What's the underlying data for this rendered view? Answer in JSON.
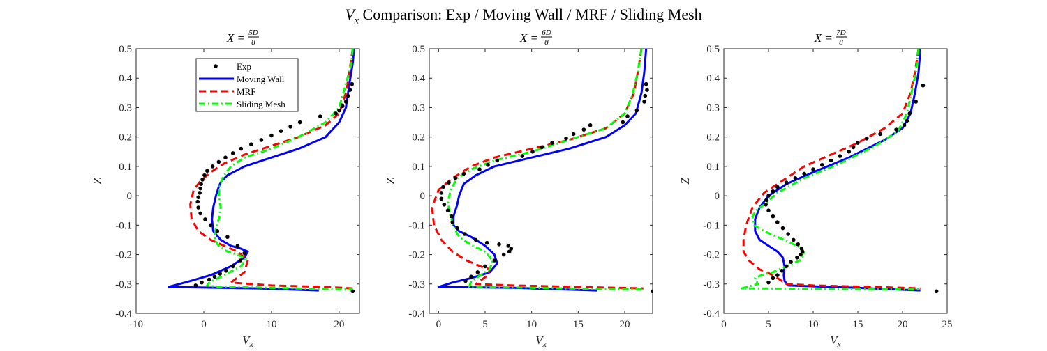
{
  "figure": {
    "title_symbol": "V",
    "title_subscript": "x",
    "title_rest": "Comparison: Exp / Moving Wall / MRF / Sliding Mesh"
  },
  "colors": {
    "exp": "#000000",
    "moving_wall": "#0000ff",
    "mrf": "#ff0000",
    "sliding_mesh": "#00ff00"
  },
  "chart_data": [
    {
      "type": "line",
      "title": "X = 5D/8",
      "title_parts": {
        "prefix": "X = ",
        "num": "5D",
        "den": "8"
      },
      "xlabel_symbol": "V",
      "xlabel_sub": "x",
      "ylabel": "Z",
      "xlim": [
        -10,
        23
      ],
      "ylim": [
        -0.4,
        0.5
      ],
      "xticks": [
        -10,
        0,
        10,
        20
      ],
      "xtick_labels": [
        "-10",
        "0",
        "10",
        "20"
      ],
      "yticks": [
        -0.4,
        -0.3,
        -0.2,
        -0.1,
        0,
        0.1,
        0.2,
        0.3,
        0.4,
        0.5
      ],
      "ytick_labels": [
        "-0.4",
        "-0.3",
        "-0.2",
        "-0.1",
        "0",
        "0.1",
        "0.2",
        "0.3",
        "0.4",
        "0.5"
      ],
      "grid": false,
      "legend": {
        "position": "top-left",
        "entries": [
          "Exp",
          "Moving Wall",
          "MRF",
          "Sliding Mesh"
        ]
      },
      "series": [
        {
          "name": "Exp",
          "style": "markers",
          "x": [
            21.9,
            21.6,
            21.3,
            21.0,
            20.5,
            20.0,
            19.5,
            17.2,
            14.2,
            12.8,
            11.4,
            10.0,
            8.5,
            7.0,
            5.5,
            4.3,
            3.2,
            2.2,
            1.3,
            0.5,
            0.1,
            -0.2,
            -0.4,
            -0.5,
            -0.6,
            -0.8,
            -0.9,
            -0.8,
            -0.5,
            0.2,
            1.0,
            2.0,
            3.5,
            5.0,
            6.0,
            5.4,
            4.3,
            3.3,
            2.4,
            1.6,
            0.8,
            -0.3,
            -1.2,
            22.0
          ],
          "y": [
            0.38,
            0.36,
            0.34,
            0.32,
            0.305,
            0.29,
            0.28,
            0.27,
            0.25,
            0.235,
            0.22,
            0.205,
            0.19,
            0.175,
            0.16,
            0.145,
            0.13,
            0.115,
            0.1,
            0.085,
            0.07,
            0.055,
            0.04,
            0.025,
            0.01,
            -0.005,
            -0.02,
            -0.04,
            -0.06,
            -0.08,
            -0.1,
            -0.12,
            -0.14,
            -0.17,
            -0.195,
            -0.22,
            -0.24,
            -0.255,
            -0.265,
            -0.275,
            -0.285,
            -0.295,
            -0.305,
            -0.325
          ]
        },
        {
          "name": "Moving Wall",
          "style": "solid",
          "x": [
            22.2,
            22.0,
            21.5,
            21.0,
            20.0,
            18.0,
            14.0,
            10.0,
            6.0,
            3.5,
            2.6,
            2.2,
            1.8,
            1.4,
            1.2,
            1.4,
            2.5,
            4.0,
            5.5,
            6.5,
            6.0,
            4.0,
            1.0,
            -2.0,
            -5.2,
            8.0,
            17.0
          ],
          "y": [
            0.5,
            0.45,
            0.38,
            0.3,
            0.25,
            0.2,
            0.16,
            0.13,
            0.1,
            0.07,
            0.05,
            0.03,
            0.0,
            -0.04,
            -0.08,
            -0.12,
            -0.15,
            -0.17,
            -0.18,
            -0.19,
            -0.21,
            -0.24,
            -0.27,
            -0.29,
            -0.31,
            -0.315,
            -0.322
          ]
        },
        {
          "name": "MRF",
          "style": "dashed",
          "x": [
            22.0,
            21.5,
            21.0,
            20.0,
            18.0,
            14.0,
            10.0,
            6.0,
            3.0,
            1.0,
            -0.5,
            -1.5,
            -2.0,
            -1.8,
            -0.8,
            1.0,
            3.0,
            5.0,
            6.5,
            6.0,
            4.0,
            10.0,
            18.0,
            22.0
          ],
          "y": [
            0.5,
            0.42,
            0.35,
            0.28,
            0.24,
            0.2,
            0.17,
            0.14,
            0.11,
            0.08,
            0.05,
            0.02,
            -0.03,
            -0.08,
            -0.12,
            -0.15,
            -0.17,
            -0.19,
            -0.22,
            -0.26,
            -0.295,
            -0.305,
            -0.31,
            -0.315
          ]
        },
        {
          "name": "Sliding Mesh",
          "style": "dashdot",
          "x": [
            22.0,
            21.8,
            21.0,
            20.0,
            18.0,
            14.0,
            10.0,
            6.0,
            4.0,
            3.0,
            2.4,
            2.2,
            2.5,
            2.2,
            1.7,
            1.6,
            2.2,
            3.5,
            5.0,
            6.2,
            5.5,
            3.0,
            0.8,
            0.5,
            2.0,
            8.0,
            15.0,
            22.0
          ],
          "y": [
            0.5,
            0.45,
            0.38,
            0.3,
            0.25,
            0.2,
            0.16,
            0.13,
            0.1,
            0.07,
            0.04,
            0.0,
            -0.04,
            -0.08,
            -0.12,
            -0.15,
            -0.17,
            -0.19,
            -0.2,
            -0.215,
            -0.24,
            -0.27,
            -0.295,
            -0.305,
            -0.31,
            -0.312,
            -0.316,
            -0.318
          ]
        }
      ]
    },
    {
      "type": "line",
      "title": "X = 6D/8",
      "title_parts": {
        "prefix": "X = ",
        "num": "6D",
        "den": "8"
      },
      "xlabel_symbol": "V",
      "xlabel_sub": "x",
      "ylabel": "Z",
      "xlim": [
        -1,
        23
      ],
      "ylim": [
        -0.4,
        0.5
      ],
      "xticks": [
        0,
        5,
        10,
        15,
        20
      ],
      "xtick_labels": [
        "0",
        "5",
        "10",
        "15",
        "20"
      ],
      "yticks": [
        -0.4,
        -0.3,
        -0.2,
        -0.1,
        0,
        0.1,
        0.2,
        0.3,
        0.4,
        0.5
      ],
      "ytick_labels": [
        "-0.4",
        "-0.3",
        "-0.2",
        "-0.1",
        "0",
        "0.1",
        "0.2",
        "0.3",
        "0.4",
        "0.5"
      ],
      "grid": false,
      "legend": null,
      "series": [
        {
          "name": "Exp",
          "style": "markers",
          "x": [
            22.3,
            22.4,
            22.2,
            22.1,
            21.3,
            20.3,
            19.8,
            16.3,
            15.6,
            14.5,
            13.7,
            12.2,
            11.1,
            10.1,
            9.0,
            6.3,
            5.3,
            4.4,
            2.7,
            1.8,
            1.1,
            0.5,
            0.3,
            0.3,
            0.6,
            1.0,
            1.4,
            1.5,
            2.0,
            2.8,
            4.0,
            5.2,
            6.5,
            7.5,
            7.8,
            7.6,
            7.0,
            6.0,
            5.0,
            4.2,
            3.5,
            2.9,
            23.0
          ],
          "y": [
            0.38,
            0.36,
            0.34,
            0.32,
            0.29,
            0.27,
            0.25,
            0.24,
            0.225,
            0.21,
            0.195,
            0.18,
            0.165,
            0.15,
            0.135,
            0.12,
            0.105,
            0.09,
            0.075,
            0.06,
            0.045,
            0.03,
            0.01,
            -0.01,
            -0.03,
            -0.05,
            -0.07,
            -0.09,
            -0.11,
            -0.13,
            -0.15,
            -0.16,
            -0.165,
            -0.17,
            -0.18,
            -0.19,
            -0.2,
            -0.22,
            -0.24,
            -0.26,
            -0.275,
            -0.29,
            -0.325
          ]
        },
        {
          "name": "Moving Wall",
          "style": "solid",
          "x": [
            22.3,
            22.1,
            21.8,
            21.2,
            20.0,
            18.0,
            14.0,
            10.0,
            6.0,
            4.0,
            2.7,
            2.2,
            2.0,
            1.6,
            1.6,
            2.2,
            3.5,
            5.0,
            6.0,
            6.3,
            5.5,
            3.5,
            1.5,
            0.0,
            8.0,
            17.0
          ],
          "y": [
            0.5,
            0.42,
            0.35,
            0.28,
            0.24,
            0.2,
            0.16,
            0.13,
            0.1,
            0.07,
            0.04,
            0.0,
            -0.03,
            -0.07,
            -0.1,
            -0.12,
            -0.14,
            -0.17,
            -0.2,
            -0.23,
            -0.26,
            -0.28,
            -0.295,
            -0.31,
            -0.313,
            -0.322
          ]
        },
        {
          "name": "MRF",
          "style": "dashed",
          "x": [
            21.8,
            21.4,
            21.0,
            20.0,
            18.0,
            14.0,
            10.0,
            6.0,
            3.5,
            1.5,
            0.0,
            -0.7,
            -0.5,
            0.3,
            1.5,
            3.0,
            4.5,
            5.5,
            5.3,
            4.0,
            8.0,
            15.0,
            22.0
          ],
          "y": [
            0.5,
            0.42,
            0.35,
            0.28,
            0.23,
            0.19,
            0.16,
            0.13,
            0.1,
            0.06,
            0.02,
            -0.04,
            -0.1,
            -0.15,
            -0.19,
            -0.22,
            -0.24,
            -0.25,
            -0.27,
            -0.3,
            -0.305,
            -0.31,
            -0.315
          ]
        },
        {
          "name": "Sliding Mesh",
          "style": "dashdot",
          "x": [
            21.8,
            21.4,
            20.8,
            20.0,
            18.0,
            14.0,
            10.0,
            6.0,
            3.5,
            2.0,
            1.3,
            1.0,
            1.2,
            1.6,
            2.0,
            2.6,
            3.7,
            5.0,
            5.8,
            5.5,
            4.5,
            3.5,
            3.3,
            8.0,
            15.0,
            22.0
          ],
          "y": [
            0.5,
            0.42,
            0.34,
            0.28,
            0.23,
            0.19,
            0.15,
            0.12,
            0.09,
            0.06,
            0.02,
            -0.02,
            -0.06,
            -0.1,
            -0.13,
            -0.15,
            -0.17,
            -0.19,
            -0.22,
            -0.25,
            -0.27,
            -0.29,
            -0.31,
            -0.312,
            -0.316,
            -0.318
          ]
        }
      ]
    },
    {
      "type": "line",
      "title": "X = 7D/8",
      "title_parts": {
        "prefix": "X = ",
        "num": "7D",
        "den": "8"
      },
      "xlabel_symbol": "V",
      "xlabel_sub": "x",
      "ylabel": "Z",
      "xlim": [
        0,
        25
      ],
      "ylim": [
        -0.4,
        0.5
      ],
      "xticks": [
        0,
        5,
        10,
        15,
        20,
        25
      ],
      "xtick_labels": [
        "0",
        "5",
        "10",
        "15",
        "20",
        "25"
      ],
      "yticks": [
        -0.4,
        -0.3,
        -0.2,
        -0.1,
        0,
        0.1,
        0.2,
        0.3,
        0.4,
        0.5
      ],
      "ytick_labels": [
        "-0.4",
        "-0.3",
        "-0.2",
        "-0.1",
        "0",
        "0.1",
        "0.2",
        "0.3",
        "0.4",
        "0.5"
      ],
      "grid": false,
      "legend": null,
      "series": [
        {
          "name": "Exp",
          "style": "markers",
          "x": [
            22.3,
            21.5,
            20.8,
            20.5,
            20.2,
            19.3,
            17.5,
            16.0,
            15.0,
            14.5,
            14.0,
            13.0,
            12.0,
            11.0,
            10.0,
            9.0,
            8.0,
            7.0,
            6.0,
            5.5,
            5.0,
            4.8,
            4.7,
            5.0,
            5.5,
            6.0,
            6.6,
            7.2,
            7.8,
            8.3,
            8.7,
            8.8,
            8.6,
            8.2,
            7.5,
            7.0,
            6.5,
            6.0,
            5.5,
            5.0,
            23.8
          ],
          "y": [
            0.375,
            0.32,
            0.28,
            0.255,
            0.24,
            0.225,
            0.21,
            0.195,
            0.18,
            0.165,
            0.15,
            0.135,
            0.12,
            0.105,
            0.09,
            0.075,
            0.06,
            0.045,
            0.03,
            0.015,
            0.0,
            -0.015,
            -0.03,
            -0.05,
            -0.07,
            -0.09,
            -0.11,
            -0.13,
            -0.15,
            -0.165,
            -0.18,
            -0.19,
            -0.2,
            -0.21,
            -0.225,
            -0.24,
            -0.255,
            -0.27,
            -0.28,
            -0.295,
            -0.325
          ]
        },
        {
          "name": "Moving Wall",
          "style": "solid",
          "x": [
            22.0,
            21.8,
            21.4,
            20.9,
            20.0,
            18.0,
            14.0,
            10.0,
            7.0,
            5.0,
            4.0,
            3.5,
            3.5,
            4.0,
            5.0,
            6.0,
            6.6,
            6.8,
            6.7,
            6.8,
            7.2,
            15.0,
            22.0
          ],
          "y": [
            0.5,
            0.42,
            0.35,
            0.28,
            0.23,
            0.19,
            0.13,
            0.08,
            0.04,
            0.0,
            -0.04,
            -0.08,
            -0.12,
            -0.15,
            -0.17,
            -0.19,
            -0.21,
            -0.24,
            -0.27,
            -0.29,
            -0.305,
            -0.313,
            -0.322
          ]
        },
        {
          "name": "MRF",
          "style": "dashed",
          "x": [
            21.8,
            21.4,
            20.9,
            20.0,
            18.0,
            15.0,
            12.0,
            9.0,
            6.5,
            4.5,
            3.2,
            2.5,
            2.2,
            2.2,
            2.8,
            4.0,
            5.5,
            7.0,
            10.0,
            17.0,
            22.0
          ],
          "y": [
            0.5,
            0.42,
            0.35,
            0.28,
            0.23,
            0.18,
            0.14,
            0.1,
            0.05,
            0.01,
            -0.04,
            -0.1,
            -0.15,
            -0.19,
            -0.22,
            -0.25,
            -0.27,
            -0.3,
            -0.305,
            -0.31,
            -0.315
          ]
        },
        {
          "name": "Sliding Mesh",
          "style": "dashdot",
          "x": [
            21.8,
            21.5,
            21.0,
            20.5,
            19.5,
            17.0,
            13.0,
            9.0,
            6.0,
            4.5,
            3.6,
            3.2,
            3.4,
            4.5,
            6.0,
            7.5,
            8.8,
            9.0,
            8.5,
            7.0,
            5.5,
            4.2,
            3.5,
            3.8,
            2.0,
            8.0,
            15.0,
            22.0
          ],
          "y": [
            0.5,
            0.42,
            0.35,
            0.28,
            0.22,
            0.17,
            0.11,
            0.06,
            0.01,
            -0.03,
            -0.05,
            -0.07,
            -0.1,
            -0.12,
            -0.14,
            -0.16,
            -0.18,
            -0.2,
            -0.22,
            -0.24,
            -0.26,
            -0.27,
            -0.28,
            -0.3,
            -0.315,
            -0.316,
            -0.317,
            -0.318
          ]
        }
      ]
    }
  ]
}
